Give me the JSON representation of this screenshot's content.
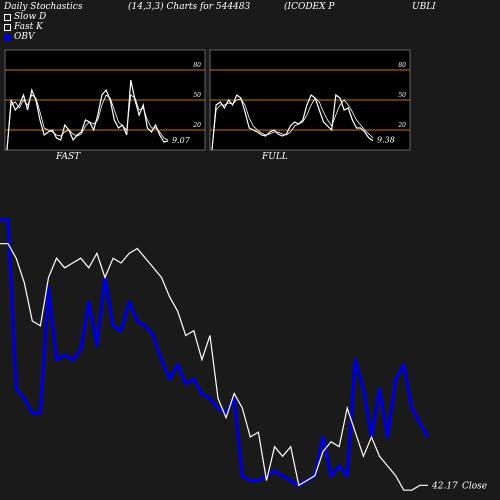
{
  "header": {
    "title": "Daily Stochastics",
    "params": "(14,3,3) Charts for 544483",
    "symbol_left": "(ICODEX P",
    "symbol_right": "UBLI"
  },
  "legend": [
    {
      "label": "Slow D",
      "color": "#ffffff",
      "style": "outline"
    },
    {
      "label": "Fast K",
      "color": "#ffffff",
      "style": "outline"
    },
    {
      "label": "OBV",
      "color": "#0000cc",
      "style": "filled"
    }
  ],
  "colors": {
    "background": "#1a1a1a",
    "panel": "#000000",
    "level_line": "#c87800",
    "price": "#ffffff",
    "obv": "#0000cc"
  },
  "chart_data": [
    {
      "type": "line",
      "title": "FAST",
      "levels": [
        20,
        50,
        80
      ],
      "tick_labels": [
        "80",
        "50",
        "20"
      ],
      "ylim": [
        0,
        100
      ],
      "last_value_label": "9.07",
      "series": [
        {
          "name": "Fast K",
          "values": [
            0,
            50,
            40,
            45,
            55,
            40,
            60,
            50,
            30,
            15,
            18,
            20,
            12,
            10,
            25,
            20,
            10,
            15,
            18,
            30,
            28,
            20,
            35,
            55,
            60,
            50,
            30,
            22,
            25,
            15,
            70,
            50,
            35,
            45,
            22,
            18,
            25,
            15,
            8,
            9.07
          ]
        },
        {
          "name": "Slow D",
          "values": [
            0,
            45,
            48,
            42,
            50,
            45,
            55,
            52,
            38,
            22,
            20,
            18,
            15,
            14,
            18,
            20,
            16,
            14,
            16,
            24,
            28,
            26,
            30,
            45,
            55,
            52,
            40,
            28,
            24,
            20,
            55,
            52,
            40,
            42,
            30,
            22,
            22,
            18,
            12,
            10
          ]
        }
      ]
    },
    {
      "type": "line",
      "title": "FULL",
      "levels": [
        20,
        50,
        80
      ],
      "tick_labels": [
        "80",
        "50",
        "20"
      ],
      "ylim": [
        0,
        100
      ],
      "last_value_label": "9.38",
      "series": [
        {
          "name": "Full K",
          "values": [
            0,
            45,
            48,
            42,
            50,
            45,
            55,
            52,
            38,
            22,
            20,
            18,
            15,
            14,
            18,
            20,
            16,
            14,
            16,
            24,
            28,
            26,
            30,
            45,
            55,
            52,
            40,
            28,
            24,
            20,
            55,
            52,
            40,
            42,
            30,
            22,
            22,
            18,
            12,
            9.38
          ]
        },
        {
          "name": "Full D",
          "values": [
            0,
            40,
            45,
            45,
            47,
            46,
            50,
            51,
            45,
            32,
            24,
            20,
            17,
            15,
            16,
            18,
            18,
            16,
            15,
            18,
            24,
            26,
            28,
            35,
            45,
            52,
            48,
            38,
            30,
            24,
            35,
            45,
            50,
            45,
            38,
            30,
            25,
            20,
            16,
            12
          ]
        }
      ]
    },
    {
      "type": "line",
      "last_value_label": "42.17",
      "last_value_suffix": "Close",
      "series": [
        {
          "name": "Close",
          "values": [
            52,
            52,
            49,
            44,
            36,
            35,
            45,
            49,
            47,
            48,
            49,
            47,
            50,
            45,
            49,
            48,
            50,
            51,
            49,
            47,
            45,
            41,
            38,
            33,
            34,
            28,
            33,
            20,
            16,
            21,
            18,
            12,
            13,
            3,
            10,
            8,
            10,
            2,
            3,
            4,
            9,
            11,
            10,
            18,
            13,
            8,
            12,
            8,
            6,
            4,
            1,
            1,
            2,
            2
          ]
        },
        {
          "name": "OBV",
          "values": [
            57,
            57,
            22,
            20,
            17,
            17,
            43,
            28,
            29,
            28,
            30,
            40,
            31,
            45,
            35,
            34,
            40,
            36,
            35,
            33,
            28,
            24,
            27,
            23,
            24,
            21,
            20,
            18,
            17,
            20,
            4,
            3,
            3,
            4,
            5,
            4,
            3,
            2,
            3,
            4,
            12,
            4,
            6,
            4,
            28,
            22,
            12,
            22,
            12,
            24,
            27,
            18,
            15,
            12
          ]
        }
      ]
    }
  ]
}
